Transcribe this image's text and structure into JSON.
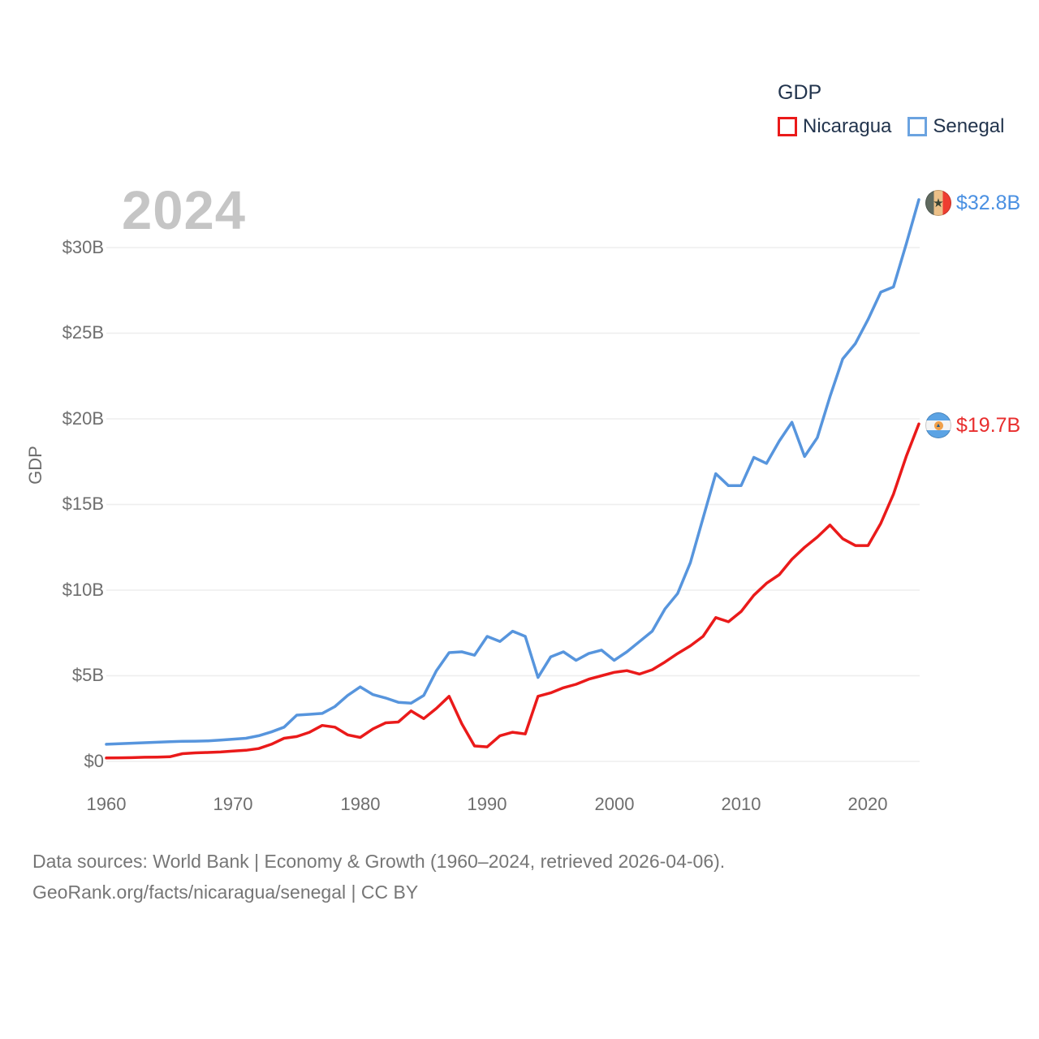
{
  "watermark": "2024",
  "legend": {
    "title": "GDP",
    "items": [
      {
        "label": "Nicaragua",
        "color": "#ea1a1a"
      },
      {
        "label": "Senegal",
        "color": "#6ba3e0"
      }
    ]
  },
  "y_axis": {
    "title": "GDP",
    "ticks": [
      "$0",
      "$5B",
      "$10B",
      "$15B",
      "$20B",
      "$25B",
      "$30B"
    ]
  },
  "x_axis": {
    "ticks": [
      "1960",
      "1970",
      "1980",
      "1990",
      "2000",
      "2010",
      "2020"
    ]
  },
  "end_labels": {
    "senegal": {
      "text": "$32.8B",
      "color": "#4a90e2",
      "flag": "senegal-flag"
    },
    "nicaragua": {
      "text": "$19.7B",
      "color": "#e82e2e",
      "flag": "nicaragua-flag"
    }
  },
  "footer": {
    "line1": "Data sources: World Bank | Economy & Growth (1960–2024, retrieved 2026-04-06).",
    "line2": "GeoRank.org/facts/nicaragua/senegal | CC BY"
  },
  "chart_data": {
    "type": "line",
    "title": "",
    "ylabel": "GDP",
    "units": "billions of current US$",
    "xlim": [
      1960,
      2024
    ],
    "ylim": [
      0,
      33.5
    ],
    "x_ticks": [
      1960,
      1970,
      1980,
      1990,
      2000,
      2010,
      2020
    ],
    "y_ticks": [
      0,
      5,
      10,
      15,
      20,
      25,
      30
    ],
    "grid": "horizontal",
    "legend_position": "top-right",
    "gridline_color": "#eeeeee",
    "years": [
      1960,
      1961,
      1962,
      1963,
      1964,
      1965,
      1966,
      1967,
      1968,
      1969,
      1970,
      1971,
      1972,
      1973,
      1974,
      1975,
      1976,
      1977,
      1978,
      1979,
      1980,
      1981,
      1982,
      1983,
      1984,
      1985,
      1986,
      1987,
      1988,
      1989,
      1990,
      1991,
      1992,
      1993,
      1994,
      1995,
      1996,
      1997,
      1998,
      1999,
      2000,
      2001,
      2002,
      2003,
      2004,
      2005,
      2006,
      2007,
      2008,
      2009,
      2010,
      2011,
      2012,
      2013,
      2014,
      2015,
      2016,
      2017,
      2018,
      2019,
      2020,
      2021,
      2022,
      2023,
      2024
    ],
    "series": [
      {
        "name": "Nicaragua",
        "color": "#ea1a1a",
        "end_label": "$19.7B",
        "values": [
          0.2,
          0.21,
          0.22,
          0.24,
          0.25,
          0.27,
          0.45,
          0.5,
          0.52,
          0.55,
          0.6,
          0.65,
          0.75,
          1.0,
          1.35,
          1.45,
          1.7,
          2.1,
          2.0,
          1.55,
          1.4,
          1.9,
          2.25,
          2.3,
          2.95,
          2.5,
          3.1,
          3.8,
          2.2,
          0.9,
          0.85,
          1.5,
          1.7,
          1.6,
          3.8,
          4.0,
          4.3,
          4.5,
          4.8,
          5.0,
          5.2,
          5.3,
          5.1,
          5.35,
          5.8,
          6.3,
          6.75,
          7.3,
          8.4,
          8.15,
          8.75,
          9.7,
          10.4,
          10.9,
          11.8,
          12.5,
          13.1,
          13.8,
          13.0,
          12.6,
          12.6,
          13.9,
          15.6,
          17.8,
          19.7
        ]
      },
      {
        "name": "Senegal",
        "color": "#5795dd",
        "end_label": "$32.8B",
        "values": [
          1.0,
          1.03,
          1.06,
          1.09,
          1.12,
          1.15,
          1.17,
          1.18,
          1.2,
          1.24,
          1.3,
          1.35,
          1.5,
          1.72,
          2.0,
          2.7,
          2.75,
          2.8,
          3.2,
          3.85,
          4.35,
          3.9,
          3.7,
          3.45,
          3.4,
          3.85,
          5.3,
          6.35,
          6.4,
          6.2,
          7.3,
          7.0,
          7.6,
          7.3,
          4.9,
          6.1,
          6.4,
          5.9,
          6.3,
          6.5,
          5.9,
          6.4,
          7.0,
          7.6,
          8.9,
          9.8,
          11.6,
          14.2,
          16.8,
          16.1,
          16.1,
          17.75,
          17.4,
          18.7,
          19.8,
          17.8,
          18.9,
          21.3,
          23.5,
          24.4,
          25.8,
          27.4,
          27.7,
          30.2,
          32.8
        ]
      }
    ]
  }
}
